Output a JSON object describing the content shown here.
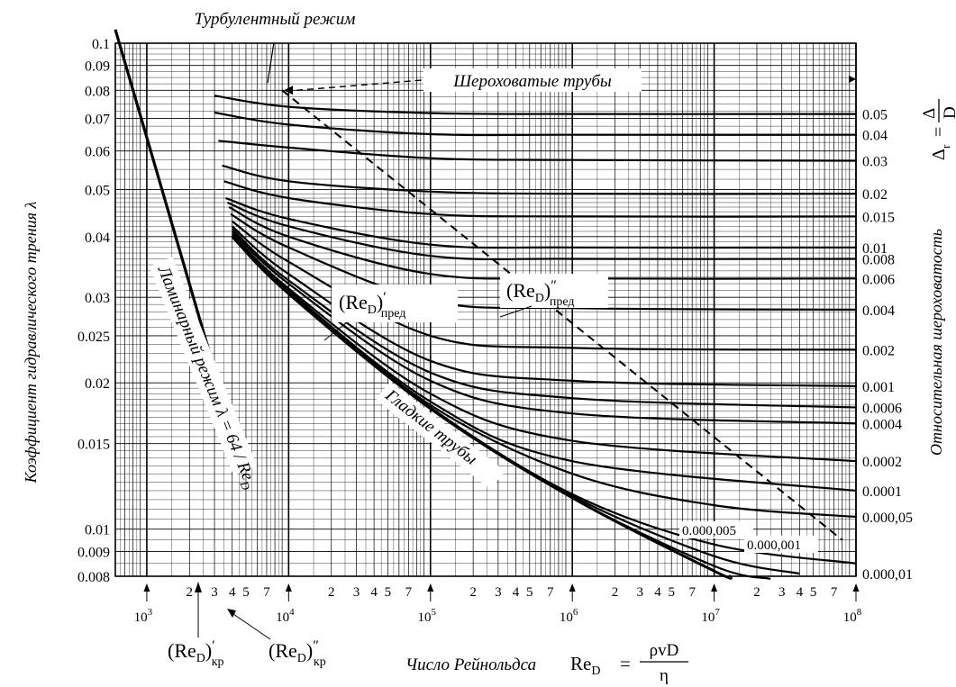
{
  "chart_data": {
    "type": "line",
    "title": "Турбулентный режим",
    "xlabel_prefix": "Число Рейнольдса",
    "xlabel_symbol": "Re",
    "xlabel_sub": "D",
    "xlabel_num": "ρvD",
    "xlabel_den": "η",
    "ylabel": "Коэффициент гидравлического трения λ",
    "ylabel_right": "Относительная шероховатость",
    "rough_label": "Шероховатые трубы",
    "smooth_label": "Гладкие трубы",
    "laminar_label": "Ламинарный режим λ = 64 / Re",
    "laminar_sub": "D",
    "xscale": "log",
    "yscale": "log",
    "xlim": [
      600,
      100000000
    ],
    "ylim": [
      0.008,
      0.1
    ],
    "grid": true,
    "y_ticks": [
      {
        "v": 0.1,
        "t": "0.1"
      },
      {
        "v": 0.09,
        "t": "0.09"
      },
      {
        "v": 0.08,
        "t": "0.08"
      },
      {
        "v": 0.07,
        "t": "0.07"
      },
      {
        "v": 0.06,
        "t": "0.06"
      },
      {
        "v": 0.05,
        "t": "0.05"
      },
      {
        "v": 0.04,
        "t": "0.04"
      },
      {
        "v": 0.03,
        "t": "0.03"
      },
      {
        "v": 0.025,
        "t": "0.025"
      },
      {
        "v": 0.02,
        "t": "0.02"
      },
      {
        "v": 0.015,
        "t": "0.015"
      },
      {
        "v": 0.01,
        "t": "0.01"
      },
      {
        "v": 0.009,
        "t": "0.009"
      },
      {
        "v": 0.008,
        "t": "0.008"
      }
    ],
    "x_decades": [
      {
        "v": 1000,
        "t": "10",
        "e": "3"
      },
      {
        "v": 10000,
        "t": "10",
        "e": "4"
      },
      {
        "v": 100000,
        "t": "10",
        "e": "5"
      },
      {
        "v": 1000000,
        "t": "10",
        "e": "6"
      },
      {
        "v": 10000000,
        "t": "10",
        "e": "7"
      },
      {
        "v": 100000000,
        "t": "10",
        "e": "8"
      }
    ],
    "x_minor_labels": [
      "2",
      "3",
      "4",
      "5",
      "7"
    ],
    "laminar": {
      "x": [
        600,
        3800
      ],
      "y": [
        0.1067,
        0.0168
      ]
    },
    "transition_line": {
      "x": [
        9000,
        80000000
      ],
      "y": [
        0.08,
        0.0095
      ]
    },
    "series": [
      {
        "eps": "0.05",
        "x": [
          3000,
          10000,
          100000,
          1000000,
          100000000
        ],
        "y": [
          0.078,
          0.074,
          0.0718,
          0.0715,
          0.0715
        ]
      },
      {
        "eps": "0.04",
        "x": [
          3000,
          10000,
          100000,
          1000000,
          100000000
        ],
        "y": [
          0.072,
          0.068,
          0.065,
          0.0648,
          0.0648
        ]
      },
      {
        "eps": "0.03",
        "x": [
          3200,
          10000,
          100000,
          1000000,
          100000000
        ],
        "y": [
          0.063,
          0.061,
          0.058,
          0.0575,
          0.0573
        ]
      },
      {
        "eps": "0.02",
        "x": [
          3400,
          10000,
          100000,
          1000000,
          100000000
        ],
        "y": [
          0.056,
          0.052,
          0.0495,
          0.049,
          0.049
        ]
      },
      {
        "eps": "0.015",
        "x": [
          3500,
          10000,
          100000,
          1000000,
          100000000
        ],
        "y": [
          0.052,
          0.048,
          0.0445,
          0.044,
          0.044
        ]
      },
      {
        "eps": "0.01",
        "x": [
          3600,
          10000,
          100000,
          1000000,
          100000000
        ],
        "y": [
          0.048,
          0.0435,
          0.0385,
          0.038,
          0.038
        ]
      },
      {
        "eps": "0.008",
        "x": [
          3700,
          10000,
          100000,
          1000000,
          100000000
        ],
        "y": [
          0.047,
          0.042,
          0.0365,
          0.036,
          0.036
        ]
      },
      {
        "eps": "0.006",
        "x": [
          3800,
          10000,
          100000,
          1000000,
          100000000
        ],
        "y": [
          0.046,
          0.04,
          0.0335,
          0.0328,
          0.0328
        ]
      },
      {
        "eps": "0.004",
        "x": [
          3900,
          10000,
          100000,
          1000000,
          100000000
        ],
        "y": [
          0.0445,
          0.038,
          0.0295,
          0.0285,
          0.0283
        ]
      },
      {
        "eps": "0.002",
        "x": [
          4000,
          10000,
          100000,
          1000000,
          100000000
        ],
        "y": [
          0.043,
          0.0355,
          0.025,
          0.0236,
          0.0234
        ]
      },
      {
        "eps": "0.001",
        "x": [
          4000,
          10000,
          100000,
          1000000,
          100000000
        ],
        "y": [
          0.042,
          0.0335,
          0.0222,
          0.0202,
          0.0197
        ]
      },
      {
        "eps": "0.0006",
        "x": [
          4000,
          10000,
          100000,
          1000000,
          100000000
        ],
        "y": [
          0.0415,
          0.0325,
          0.021,
          0.0186,
          0.0178
        ]
      },
      {
        "eps": "0.0004",
        "x": [
          4000,
          10000,
          100000,
          1000000,
          100000000
        ],
        "y": [
          0.041,
          0.032,
          0.0202,
          0.0173,
          0.0165
        ]
      },
      {
        "eps": "0.0002",
        "x": [
          4000,
          10000,
          100000,
          1000000,
          100000000
        ],
        "y": [
          0.0405,
          0.0313,
          0.019,
          0.0152,
          0.0138
        ]
      },
      {
        "eps": "0.0001",
        "x": [
          4000,
          10000,
          100000,
          1000000,
          100000000
        ],
        "y": [
          0.04,
          0.031,
          0.0183,
          0.0138,
          0.012
        ]
      },
      {
        "eps": "0.000,05",
        "x": [
          4000,
          10000,
          100000,
          1000000,
          10000000,
          100000000
        ],
        "y": [
          0.04,
          0.0308,
          0.018,
          0.013,
          0.0112,
          0.0106
        ]
      },
      {
        "eps": "0.000,01",
        "x": [
          4000,
          10000,
          100000,
          1000000,
          10000000,
          100000000
        ],
        "y": [
          0.04,
          0.0305,
          0.0178,
          0.0118,
          0.0093,
          0.0085
        ]
      },
      {
        "eps": "0.000,005",
        "x": [
          4000,
          10000,
          100000,
          1000000,
          10000000,
          40000000
        ],
        "y": [
          0.04,
          0.0305,
          0.0177,
          0.0117,
          0.0088,
          0.0081
        ]
      },
      {
        "eps": "0.000,001",
        "x": [
          4000,
          10000,
          100000,
          1000000,
          10000000,
          25000000
        ],
        "y": [
          0.04,
          0.0305,
          0.0177,
          0.0116,
          0.0084,
          0.0079
        ]
      },
      {
        "eps": "smooth",
        "x": [
          4000,
          10000,
          100000,
          1000000,
          10000000,
          13000000
        ],
        "y": [
          0.04,
          0.0305,
          0.0177,
          0.0116,
          0.0082,
          0.008
        ]
      }
    ],
    "right_labels": [
      "0.05",
      "0.04",
      "0.03",
      "0.02",
      "0.015",
      "0.01",
      "0.008",
      "0.006",
      "0.004",
      "0.002",
      "0.001",
      "0.0006",
      "0.0004",
      "0.0002",
      "0.0001",
      "0.000,05",
      "0.000,01"
    ],
    "inner_labels": [
      "0.000,005",
      "0.000,001"
    ],
    "annotations": {
      "re_pred1": "(Re",
      "re_pred1_sub": "D",
      "re_pred1_sup": "′",
      "re_pred1_sub2": "пред",
      "re_pred2": "(Re",
      "re_pred2_sub": "D",
      "re_pred2_sup": "″",
      "re_pred2_sub2": "пред",
      "re_kr1": "(Re",
      "re_kr1_sub": "D",
      "re_kr1_sup": "′",
      "re_kr1_sub2": "кр",
      "re_kr2": "(Re",
      "re_kr2_sub": "D",
      "re_kr2_sup": "″",
      "re_kr2_sub2": "кр",
      "rel_rough_lhs": "Δ",
      "rel_rough_sub": "r",
      "rel_rough_num": "Δ",
      "rel_rough_den": "D"
    }
  }
}
